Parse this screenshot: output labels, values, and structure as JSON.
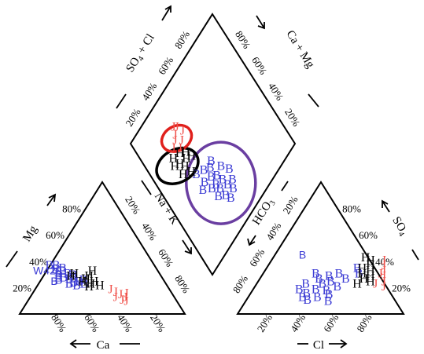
{
  "chart_data": {
    "type": "scatter",
    "subtype": "piper-trilinear",
    "title": "",
    "tick_labels": {
      "cation_left": [
        "20%",
        "40%",
        "60%",
        "80%"
      ],
      "cation_ca_bottom": [
        "80%",
        "60%",
        "40%",
        "20%"
      ],
      "anion_cl_bottom": [
        "20%",
        "40%",
        "60%",
        "80%"
      ],
      "anion_right": [
        "20%",
        "40%",
        "60%",
        "80%"
      ],
      "nak_edge": [
        "20%",
        "40%",
        "60%",
        "80%"
      ],
      "hco3_edge": [
        "80%",
        "60%",
        "40%",
        "20%"
      ],
      "diamond_left": [
        "20%",
        "40%",
        "60%",
        "80%"
      ],
      "diamond_right": [
        "80%",
        "60%",
        "40%",
        "20%"
      ]
    },
    "axes": {
      "cation_left": "Mg",
      "cation_bottom": "Ca",
      "cation_right": "Na + K",
      "anion_left": "HCO3",
      "anion_bottom": "Cl",
      "anion_right": "SO4",
      "diamond_left": "SO4 + Cl",
      "diamond_right": "Ca + Mg"
    },
    "annotations": [
      {
        "text": "W42",
        "ca": 70,
        "mg": 30
      },
      {
        "text": "B",
        "ca": 68,
        "mg": 22
      },
      {
        "text": "B",
        "cl": 18,
        "so4": 42
      }
    ],
    "series": [
      {
        "marker": "B",
        "color": "#3b3bd4",
        "cations": [
          {
            "ca": 64,
            "mg": 36
          },
          {
            "ca": 60,
            "mg": 36
          },
          {
            "ca": 62,
            "mg": 33
          },
          {
            "ca": 58,
            "mg": 32
          },
          {
            "ca": 56,
            "mg": 30
          },
          {
            "ca": 62,
            "mg": 29
          },
          {
            "ca": 60,
            "mg": 27
          },
          {
            "ca": 57,
            "mg": 26
          },
          {
            "ca": 54,
            "mg": 27
          },
          {
            "ca": 52,
            "mg": 24
          },
          {
            "ca": 64,
            "mg": 25
          },
          {
            "ca": 59,
            "mg": 22
          },
          {
            "ca": 55,
            "mg": 21
          },
          {
            "ca": 50,
            "mg": 22
          },
          {
            "ca": 61,
            "mg": 31
          },
          {
            "ca": 63,
            "mg": 27
          },
          {
            "ca": 53,
            "mg": 29
          },
          {
            "ca": 57,
            "mg": 34
          },
          {
            "ca": 49,
            "mg": 25
          },
          {
            "ca": 56,
            "mg": 23
          }
        ],
        "anions": [
          {
            "cl": 32,
            "so4": 30
          },
          {
            "cl": 36,
            "so4": 26
          },
          {
            "cl": 40,
            "so4": 22
          },
          {
            "cl": 38,
            "so4": 18
          },
          {
            "cl": 34,
            "so4": 15
          },
          {
            "cl": 45,
            "so4": 17
          },
          {
            "cl": 42,
            "so4": 12
          },
          {
            "cl": 48,
            "so4": 14
          },
          {
            "cl": 50,
            "so4": 20
          },
          {
            "cl": 30,
            "so4": 22
          },
          {
            "cl": 28,
            "so4": 18
          },
          {
            "cl": 52,
            "so4": 26
          },
          {
            "cl": 44,
            "so4": 24
          },
          {
            "cl": 37,
            "so4": 10
          },
          {
            "cl": 46,
            "so4": 30
          },
          {
            "cl": 55,
            "so4": 34
          },
          {
            "cl": 41,
            "so4": 28
          },
          {
            "cl": 33,
            "so4": 12
          },
          {
            "cl": 50,
            "so4": 9
          },
          {
            "cl": 58,
            "so4": 30
          }
        ],
        "diamond": [
          {
            "socl": 38,
            "camg": 64
          },
          {
            "socl": 35,
            "camg": 60
          },
          {
            "socl": 30,
            "camg": 58
          },
          {
            "socl": 28,
            "camg": 63
          },
          {
            "socl": 25,
            "camg": 57
          },
          {
            "socl": 40,
            "camg": 70
          },
          {
            "socl": 33,
            "camg": 68
          },
          {
            "socl": 22,
            "camg": 62
          },
          {
            "socl": 20,
            "camg": 55
          },
          {
            "socl": 45,
            "camg": 66
          },
          {
            "socl": 42,
            "camg": 61
          },
          {
            "socl": 36,
            "camg": 54
          },
          {
            "socl": 30,
            "camg": 50
          },
          {
            "socl": 48,
            "camg": 72
          },
          {
            "socl": 26,
            "camg": 67
          },
          {
            "socl": 18,
            "camg": 60
          },
          {
            "socl": 38,
            "camg": 74
          },
          {
            "socl": 44,
            "camg": 58
          },
          {
            "socl": 32,
            "camg": 64
          },
          {
            "socl": 24,
            "camg": 52
          }
        ]
      },
      {
        "marker": "H",
        "color": "#000000",
        "cations": [
          {
            "ca": 40,
            "mg": 32
          },
          {
            "ca": 44,
            "mg": 28
          },
          {
            "ca": 47,
            "mg": 26
          },
          {
            "ca": 50,
            "mg": 24
          },
          {
            "ca": 48,
            "mg": 20
          },
          {
            "ca": 52,
            "mg": 30
          },
          {
            "ca": 55,
            "mg": 28
          },
          {
            "ca": 43,
            "mg": 24
          },
          {
            "ca": 46,
            "mg": 22
          },
          {
            "ca": 41,
            "mg": 21
          }
        ],
        "anions": [
          {
            "cl": 56,
            "so4": 42
          },
          {
            "cl": 60,
            "so4": 40
          },
          {
            "cl": 62,
            "so4": 36
          },
          {
            "cl": 58,
            "so4": 34
          },
          {
            "cl": 64,
            "so4": 32
          },
          {
            "cl": 60,
            "so4": 30
          },
          {
            "cl": 66,
            "so4": 28
          },
          {
            "cl": 63,
            "so4": 26
          },
          {
            "cl": 68,
            "so4": 24
          },
          {
            "cl": 61,
            "so4": 22
          }
        ],
        "diamond": [
          {
            "socl": 64,
            "camg": 82
          },
          {
            "socl": 62,
            "camg": 78
          },
          {
            "socl": 58,
            "camg": 76
          },
          {
            "socl": 66,
            "camg": 74
          },
          {
            "socl": 60,
            "camg": 72
          },
          {
            "socl": 56,
            "camg": 80
          },
          {
            "socl": 68,
            "camg": 80
          },
          {
            "socl": 52,
            "camg": 74
          },
          {
            "socl": 63,
            "camg": 70
          },
          {
            "socl": 58,
            "camg": 68
          }
        ]
      },
      {
        "marker": "J",
        "color": "#f0504a",
        "cations": [
          {
            "ca": 36,
            "mg": 18
          },
          {
            "ca": 34,
            "mg": 16
          },
          {
            "ca": 32,
            "mg": 14
          },
          {
            "ca": 30,
            "mg": 12
          },
          {
            "ca": 33,
            "mg": 10
          },
          {
            "ca": 28,
            "mg": 15
          },
          {
            "ca": 31,
            "mg": 9
          },
          {
            "ca": 36,
            "mg": 12
          }
        ],
        "anions": [
          {
            "cl": 68,
            "so4": 40
          },
          {
            "cl": 70,
            "so4": 36
          },
          {
            "cl": 72,
            "so4": 32
          },
          {
            "cl": 74,
            "so4": 28
          },
          {
            "cl": 76,
            "so4": 24
          },
          {
            "cl": 72,
            "so4": 22
          },
          {
            "cl": 78,
            "so4": 20
          },
          {
            "cl": 71,
            "so4": 30
          }
        ],
        "diamond": [
          {
            "socl": 72,
            "camg": 76
          },
          {
            "socl": 74,
            "camg": 72
          },
          {
            "socl": 70,
            "camg": 68
          },
          {
            "socl": 76,
            "camg": 70
          },
          {
            "socl": 78,
            "camg": 66
          },
          {
            "socl": 73,
            "camg": 64
          },
          {
            "socl": 68,
            "camg": 72
          },
          {
            "socl": 80,
            "camg": 68
          }
        ]
      }
    ],
    "ellipses": [
      {
        "color": "#6a3ea1",
        "center": {
          "socl": 30,
          "camg": 60
        },
        "rx": 22,
        "ry": 20
      },
      {
        "color": "#000000",
        "center": {
          "socl": 63,
          "camg": 80
        },
        "rx": 14,
        "ry": 8
      },
      {
        "color": "#e0201c",
        "center": {
          "socl": 74,
          "camg": 70
        },
        "rx": 10,
        "ry": 6
      }
    ]
  }
}
